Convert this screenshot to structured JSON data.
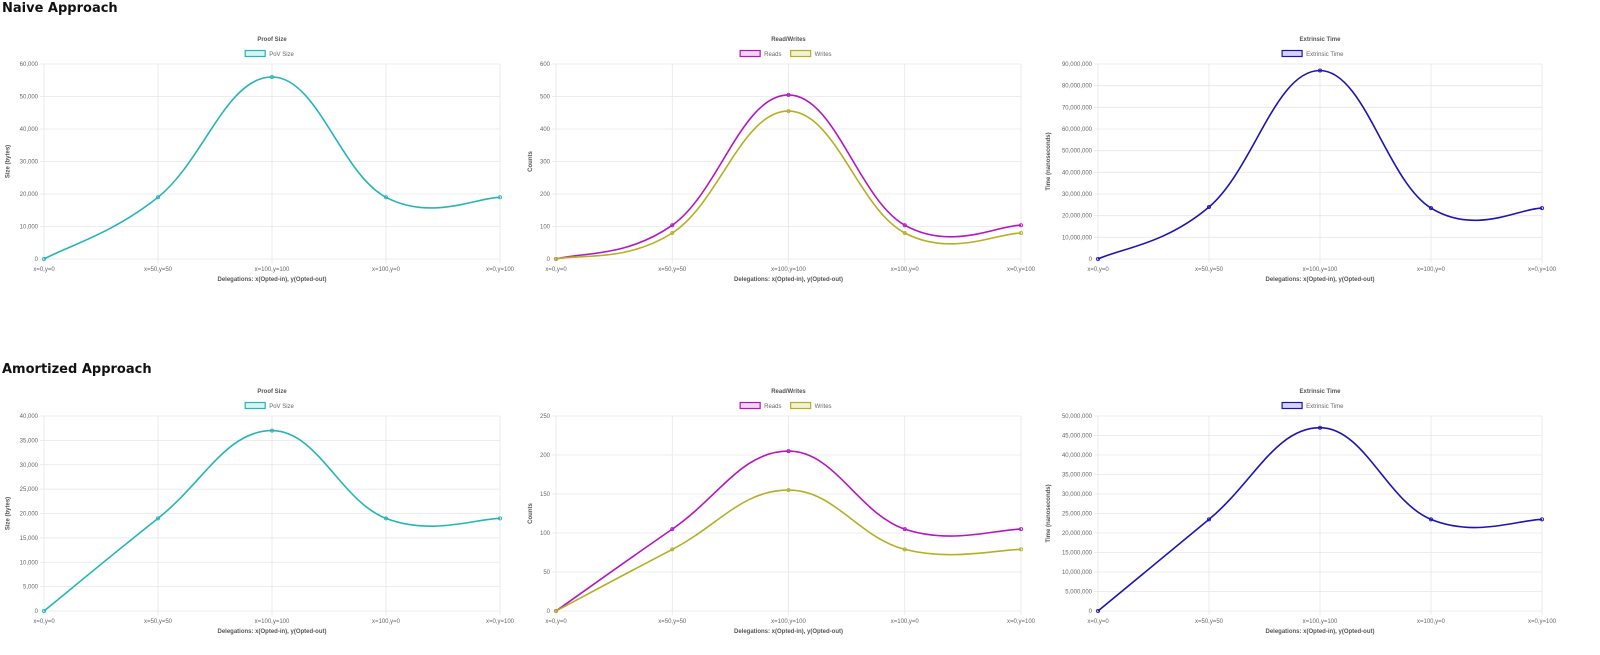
{
  "sections": {
    "naive_title": "Naive Approach",
    "amortized_title": "Amortized Approach"
  },
  "colors": {
    "pov": "#26b5b5",
    "reads": "#b316c2",
    "writes": "#b3b024",
    "extrinsic": "#1c14b3",
    "grid": "#e6e6e6",
    "text": "#666666",
    "title_text": "#555555"
  },
  "chart_data": [
    {
      "type": "line",
      "section": "Naive Approach",
      "title": "Proof Size",
      "xlabel": "Delegations: x(Opted-in), y(Opted-out)",
      "ylabel": "Size (bytes)",
      "categories": [
        "x=0,y=0",
        "x=50,y=50",
        "x=100,y=100",
        "x=100,y=0",
        "x=0,y=100"
      ],
      "ylim": [
        0,
        60000
      ],
      "yticks": [
        "0",
        "10,000",
        "20,000",
        "30,000",
        "40,000",
        "50,000",
        "60,000"
      ],
      "series": [
        {
          "name": "PoV Size",
          "color": "#26b5b5",
          "values": [
            0,
            19000,
            56000,
            19000,
            19000
          ]
        }
      ],
      "legend": "top-center",
      "grid": true
    },
    {
      "type": "line",
      "section": "Naive Approach",
      "title": "Read/Writes",
      "xlabel": "Delegations: x(Opted-in), y(Opted-out)",
      "ylabel": "Counts",
      "categories": [
        "x=0,y=0",
        "x=50,y=50",
        "x=100,y=100",
        "x=100,y=0",
        "x=0,y=100"
      ],
      "ylim": [
        0,
        600
      ],
      "yticks": [
        "0",
        "100",
        "200",
        "300",
        "400",
        "500",
        "600"
      ],
      "series": [
        {
          "name": "Reads",
          "color": "#b316c2",
          "values": [
            0,
            104,
            505,
            104,
            104
          ]
        },
        {
          "name": "Writes",
          "color": "#b3b024",
          "values": [
            0,
            80,
            455,
            80,
            80
          ]
        }
      ],
      "legend": "top-center",
      "grid": true
    },
    {
      "type": "line",
      "section": "Naive Approach",
      "title": "Extrinsic Time",
      "xlabel": "Delegations: x(Opted-in), y(Opted-out)",
      "ylabel": "Time (nanoseconds)",
      "categories": [
        "x=0,y=0",
        "x=50,y=50",
        "x=100,y=100",
        "x=100,y=0",
        "x=0,y=100"
      ],
      "ylim": [
        0,
        90000000
      ],
      "yticks": [
        "0",
        "10,000,000",
        "20,000,000",
        "30,000,000",
        "40,000,000",
        "50,000,000",
        "60,000,000",
        "70,000,000",
        "80,000,000",
        "90,000,000"
      ],
      "series": [
        {
          "name": "Extrinsic Time",
          "color": "#1c14b3",
          "values": [
            0,
            24000000,
            87000000,
            23500000,
            23500000
          ]
        }
      ],
      "legend": "top-center",
      "grid": true
    },
    {
      "type": "line",
      "section": "Amortized Approach",
      "title": "Proof Size",
      "xlabel": "Delegations: x(Opted-in), y(Opted-out)",
      "ylabel": "Size (bytes)",
      "categories": [
        "x=0,y=0",
        "x=50,y=50",
        "x=100,y=100",
        "x=100,y=0",
        "x=0,y=100"
      ],
      "ylim": [
        0,
        40000
      ],
      "yticks": [
        "0",
        "5,000",
        "10,000",
        "15,000",
        "20,000",
        "25,000",
        "30,000",
        "35,000",
        "40,000"
      ],
      "series": [
        {
          "name": "PoV Size",
          "color": "#26b5b5",
          "values": [
            0,
            19000,
            37000,
            19000,
            19000
          ]
        }
      ],
      "legend": "top-center",
      "grid": true
    },
    {
      "type": "line",
      "section": "Amortized Approach",
      "title": "Read/Writes",
      "xlabel": "Delegations: x(Opted-in), y(Opted-out)",
      "ylabel": "Counts",
      "categories": [
        "x=0,y=0",
        "x=50,y=50",
        "x=100,y=100",
        "x=100,y=0",
        "x=0,y=100"
      ],
      "ylim": [
        0,
        250
      ],
      "yticks": [
        "0",
        "50",
        "100",
        "150",
        "200",
        "250"
      ],
      "series": [
        {
          "name": "Reads",
          "color": "#b316c2",
          "values": [
            0,
            105,
            205,
            105,
            105
          ]
        },
        {
          "name": "Writes",
          "color": "#b3b024",
          "values": [
            0,
            79,
            155,
            79,
            79
          ]
        }
      ],
      "legend": "top-center",
      "grid": true
    },
    {
      "type": "line",
      "section": "Amortized Approach",
      "title": "Extrinsic Time",
      "xlabel": "Delegations: x(Opted-in), y(Opted-out)",
      "ylabel": "Time (nanoseconds)",
      "categories": [
        "x=0,y=0",
        "x=50,y=50",
        "x=100,y=100",
        "x=100,y=0",
        "x=0,y=100"
      ],
      "ylim": [
        0,
        50000000
      ],
      "yticks": [
        "0",
        "5,000,000",
        "10,000,000",
        "15,000,000",
        "20,000,000",
        "25,000,000",
        "30,000,000",
        "35,000,000",
        "40,000,000",
        "45,000,000",
        "50,000,000"
      ],
      "series": [
        {
          "name": "Extrinsic Time",
          "color": "#1c14b3",
          "values": [
            0,
            23500000,
            47000000,
            23500000,
            23500000
          ]
        }
      ],
      "legend": "top-center",
      "grid": true
    }
  ]
}
